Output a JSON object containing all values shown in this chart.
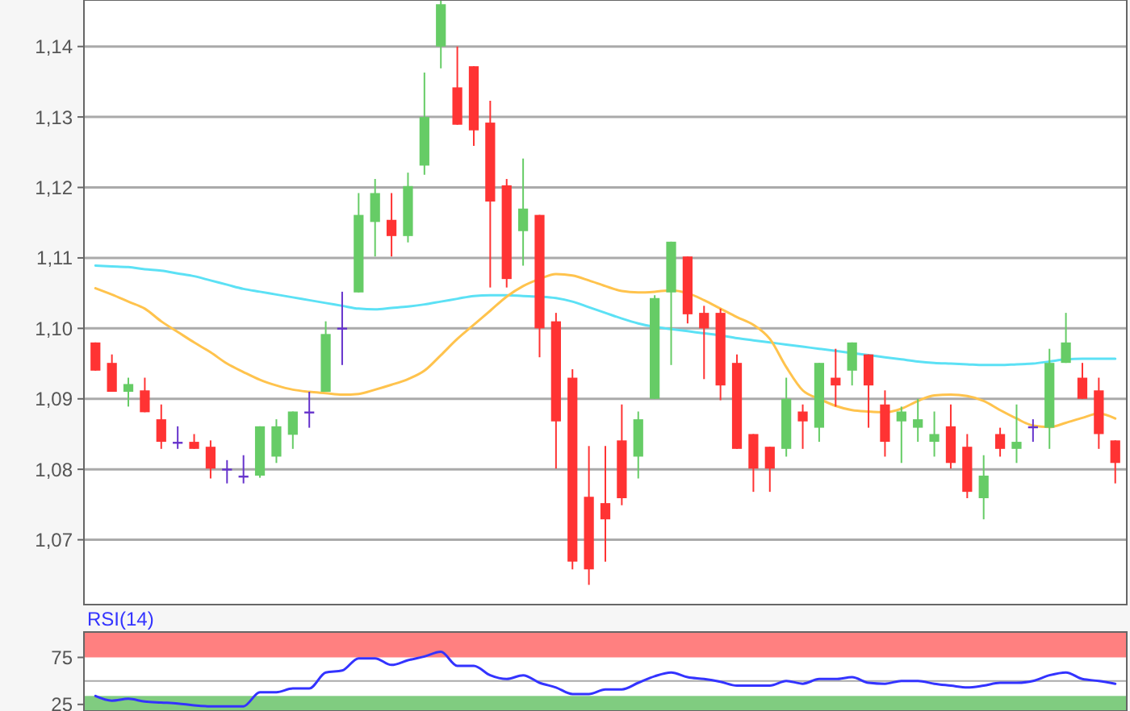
{
  "chart_data": [
    {
      "type": "candlestick",
      "categories": [
        null,
        null,
        null,
        null,
        null,
        null,
        null,
        null,
        null,
        null,
        null,
        null,
        null,
        null,
        null,
        null,
        null,
        null,
        null,
        null,
        null,
        null,
        null,
        null,
        null,
        null,
        null,
        null,
        null,
        null,
        null,
        null,
        null,
        null,
        null,
        null,
        null,
        null,
        null,
        null,
        null,
        null,
        null,
        null,
        null,
        null,
        null,
        null,
        null,
        null,
        null,
        null,
        null,
        null,
        null,
        null,
        null,
        null,
        null,
        null,
        null,
        null,
        null
      ],
      "ohlc": [
        [
          1.098,
          1.098,
          1.094,
          1.094
        ],
        [
          1.0951,
          1.0963,
          1.091,
          1.091
        ],
        [
          1.091,
          1.093,
          1.0889,
          1.0921
        ],
        [
          1.0912,
          1.093,
          1.0881,
          1.0881
        ],
        [
          1.0871,
          1.0892,
          1.0829,
          1.0839
        ],
        [
          1.0839,
          1.0861,
          1.0829,
          1.0839
        ],
        [
          1.0839,
          1.085,
          1.0829,
          1.0829
        ],
        [
          1.0832,
          1.0841,
          1.0787,
          1.0801
        ],
        [
          1.0801,
          1.0813,
          1.078,
          1.0801
        ],
        [
          1.0791,
          1.082,
          1.078,
          1.0791
        ],
        [
          1.0791,
          1.0861,
          1.0788,
          1.0861
        ],
        [
          1.0818,
          1.0871,
          1.0809,
          1.0861
        ],
        [
          1.0849,
          1.0882,
          1.0829,
          1.0882
        ],
        [
          1.0882,
          1.091,
          1.0859,
          1.0882
        ],
        [
          1.091,
          1.101,
          1.091,
          1.0992
        ],
        [
          1.1001,
          1.1052,
          1.0948,
          1.1001
        ],
        [
          1.1051,
          1.1192,
          1.1051,
          1.1161
        ],
        [
          1.1151,
          1.1212,
          1.1102,
          1.1192
        ],
        [
          1.1154,
          1.1192,
          1.1102,
          1.1131
        ],
        [
          1.1131,
          1.1221,
          1.1122,
          1.1202
        ],
        [
          1.1231,
          1.1363,
          1.1218,
          1.13
        ],
        [
          1.14,
          1.1466,
          1.1369,
          1.146
        ],
        [
          1.1342,
          1.14,
          1.1289,
          1.1289
        ],
        [
          1.1372,
          1.1372,
          1.1259,
          1.1281
        ],
        [
          1.1292,
          1.1323,
          1.1058,
          1.118
        ],
        [
          1.1203,
          1.1212,
          1.1058,
          1.107
        ],
        [
          1.1138,
          1.1241,
          1.1089,
          1.117
        ],
        [
          1.1161,
          1.1161,
          1.0959,
          1.1
        ],
        [
          1.101,
          1.1022,
          1.0801,
          1.0868
        ],
        [
          1.093,
          1.0942,
          1.0658,
          1.0669
        ],
        [
          1.0761,
          1.0833,
          1.0636,
          1.0658
        ],
        [
          1.0752,
          1.0833,
          1.0669,
          1.0729
        ],
        [
          1.0841,
          1.0892,
          1.0749,
          1.0759
        ],
        [
          1.0818,
          1.0882,
          1.0787,
          1.0871
        ],
        [
          1.09,
          1.1047,
          1.09,
          1.1043
        ],
        [
          1.1051,
          1.1123,
          1.0948,
          1.1123
        ],
        [
          1.1102,
          1.1102,
          1.1007,
          1.102
        ],
        [
          1.1022,
          1.1032,
          1.0928,
          1.1
        ],
        [
          1.1022,
          1.1028,
          1.0898,
          1.0919
        ],
        [
          1.0951,
          1.0963,
          1.0829,
          1.0829
        ],
        [
          1.085,
          1.085,
          1.0768,
          1.0801
        ],
        [
          1.0832,
          1.0832,
          1.0768,
          1.0801
        ],
        [
          1.0829,
          1.093,
          1.0818,
          1.09
        ],
        [
          1.0882,
          1.0892,
          1.0829,
          1.0868
        ],
        [
          1.0859,
          1.0951,
          1.0839,
          1.0951
        ],
        [
          1.093,
          1.0971,
          1.0889,
          1.0919
        ],
        [
          1.094,
          1.098,
          1.0919,
          1.098
        ],
        [
          1.0963,
          1.0963,
          1.0859,
          1.0919
        ],
        [
          1.0892,
          1.0912,
          1.0818,
          1.0839
        ],
        [
          1.0868,
          1.0889,
          1.0809,
          1.0882
        ],
        [
          1.0859,
          1.09,
          1.0839,
          1.0871
        ],
        [
          1.0839,
          1.0882,
          1.0818,
          1.085
        ],
        [
          1.0861,
          1.0892,
          1.0801,
          1.0809
        ],
        [
          1.0832,
          1.085,
          1.0759,
          1.0768
        ],
        [
          1.0759,
          1.082,
          1.0729,
          1.0791
        ],
        [
          1.085,
          1.0859,
          1.0818,
          1.0829
        ],
        [
          1.0829,
          1.0892,
          1.0809,
          1.0839
        ],
        [
          1.0861,
          1.0871,
          1.0839,
          1.0861
        ],
        [
          1.0859,
          1.0971,
          1.0829,
          1.0951
        ],
        [
          1.0951,
          1.1022,
          1.0951,
          1.098
        ],
        [
          1.093,
          1.0951,
          1.09,
          1.09
        ],
        [
          1.0912,
          1.093,
          1.0829,
          1.085
        ],
        [
          1.0841,
          1.0841,
          1.078,
          1.0809
        ]
      ],
      "colors": [
        "#ff3333",
        "#ff3333",
        "#66cc66",
        "#ff3333",
        "#ff3333",
        "#6633cc",
        "#ff3333",
        "#ff3333",
        "#6633cc",
        "#6633cc",
        "#66cc66",
        "#66cc66",
        "#66cc66",
        "#6633cc",
        "#66cc66",
        "#6633cc",
        "#66cc66",
        "#66cc66",
        "#ff3333",
        "#66cc66",
        "#66cc66",
        "#66cc66",
        "#ff3333",
        "#ff3333",
        "#ff3333",
        "#ff3333",
        "#66cc66",
        "#ff3333",
        "#ff3333",
        "#ff3333",
        "#ff3333",
        "#ff3333",
        "#ff3333",
        "#66cc66",
        "#66cc66",
        "#66cc66",
        "#ff3333",
        "#ff3333",
        "#ff3333",
        "#ff3333",
        "#ff3333",
        "#ff3333",
        "#66cc66",
        "#ff3333",
        "#66cc66",
        "#ff3333",
        "#66cc66",
        "#ff3333",
        "#ff3333",
        "#66cc66",
        "#66cc66",
        "#66cc66",
        "#ff3333",
        "#ff3333",
        "#66cc66",
        "#ff3333",
        "#66cc66",
        "#6633cc",
        "#66cc66",
        "#66cc66",
        "#ff3333",
        "#ff3333",
        "#ff3333"
      ],
      "series": [
        {
          "type": "line",
          "color": "#5ce1f5",
          "values": [
            1.1089,
            1.1088,
            1.1087,
            1.1084,
            1.1082,
            1.1078,
            1.1074,
            1.1068,
            1.1062,
            1.1056,
            1.1052,
            1.1048,
            1.1044,
            1.104,
            1.1036,
            1.1032,
            1.1028,
            1.1027,
            1.1029,
            1.1031,
            1.1034,
            1.1038,
            1.1042,
            1.1046,
            1.1047,
            1.1047,
            1.1046,
            1.1045,
            1.1043,
            1.1038,
            1.103,
            1.1022,
            1.1014,
            1.1007,
            1.1002,
            1.0999,
            1.0996,
            1.0993,
            1.099,
            1.0986,
            1.0983,
            1.098,
            1.0977,
            1.0974,
            1.0971,
            1.0968,
            1.0965,
            1.0962,
            1.0959,
            1.0956,
            1.0953,
            1.0951,
            1.095,
            1.0949,
            1.0948,
            1.0948,
            1.0949,
            1.095,
            1.0953,
            1.0956,
            1.0957,
            1.0957,
            1.0957
          ]
        },
        {
          "type": "line",
          "color": "#ffc34d",
          "values": [
            1.1057,
            1.1048,
            1.1038,
            1.1028,
            1.101,
            1.0995,
            1.098,
            1.0966,
            1.095,
            1.0938,
            1.0927,
            1.0919,
            1.0913,
            1.091,
            1.0908,
            1.0906,
            1.0907,
            1.0913,
            1.092,
            1.0928,
            1.094,
            1.0962,
            1.0985,
            1.1005,
            1.1025,
            1.1045,
            1.106,
            1.107,
            1.1077,
            1.1075,
            1.1068,
            1.106,
            1.1053,
            1.1051,
            1.1052,
            1.1054,
            1.105,
            1.104,
            1.1028,
            1.1016,
            1.1005,
            1.0985,
            1.0945,
            1.0912,
            1.09,
            1.089,
            1.0884,
            1.0882,
            1.0881,
            1.0886,
            1.0897,
            1.0905,
            1.0906,
            1.0904,
            1.0897,
            1.0884,
            1.0872,
            1.0862,
            1.086,
            1.0866,
            1.0873,
            1.0879,
            1.0872
          ]
        }
      ],
      "ylim": [
        1.0608,
        1.1466
      ],
      "yticks": [
        {
          "value": 1.07,
          "label": "1,07"
        },
        {
          "value": 1.08,
          "label": "1,08"
        },
        {
          "value": 1.09,
          "label": "1,09"
        },
        {
          "value": 1.1,
          "label": "1,10"
        },
        {
          "value": 1.11,
          "label": "1,11"
        },
        {
          "value": 1.12,
          "label": "1,12"
        },
        {
          "value": 1.13,
          "label": "1,13"
        },
        {
          "value": 1.14,
          "label": "1,14"
        }
      ],
      "grid": "y",
      "tick_labels": "y"
    },
    {
      "type": "line",
      "title": "RSI(14)",
      "categories": [
        null,
        null,
        null,
        null,
        null,
        null,
        null,
        null,
        null,
        null,
        null,
        null,
        null,
        null,
        null,
        null,
        null,
        null,
        null,
        null,
        null,
        null,
        null,
        null,
        null,
        null,
        null,
        null,
        null,
        null,
        null,
        null,
        null,
        null,
        null,
        null,
        null,
        null,
        null,
        null,
        null,
        null,
        null,
        null,
        null,
        null,
        null,
        null,
        null,
        null,
        null,
        null,
        null,
        null,
        null,
        null,
        null,
        null,
        null,
        null,
        null,
        null,
        null
      ],
      "series": [
        {
          "color": "#3333ff",
          "values": [
            34,
            29,
            31,
            28,
            27,
            26,
            24,
            23,
            23,
            23,
            38,
            38,
            42,
            42,
            59,
            61,
            74,
            74,
            67,
            72,
            76,
            81,
            66,
            66,
            56,
            52,
            56,
            48,
            43,
            36,
            36,
            41,
            41,
            48,
            55,
            59,
            54,
            52,
            49,
            45,
            45,
            45,
            50,
            47,
            52,
            52,
            54,
            48,
            47,
            50,
            50,
            47,
            45,
            43,
            45,
            48,
            48,
            50,
            56,
            59,
            52,
            50,
            47
          ]
        }
      ],
      "ylim": [
        18,
        102
      ],
      "yticks": [
        25,
        75
      ],
      "bands": [
        {
          "axis": "y",
          "from": 75,
          "to": 102,
          "color": "#ff8080"
        },
        {
          "axis": "y",
          "from": 18,
          "to": 34,
          "color": "#80cc80"
        }
      ],
      "ref_lines": [
        {
          "axis": "y",
          "value": 50,
          "color": "#aaaaaa"
        }
      ],
      "tick_labels": "y"
    }
  ]
}
